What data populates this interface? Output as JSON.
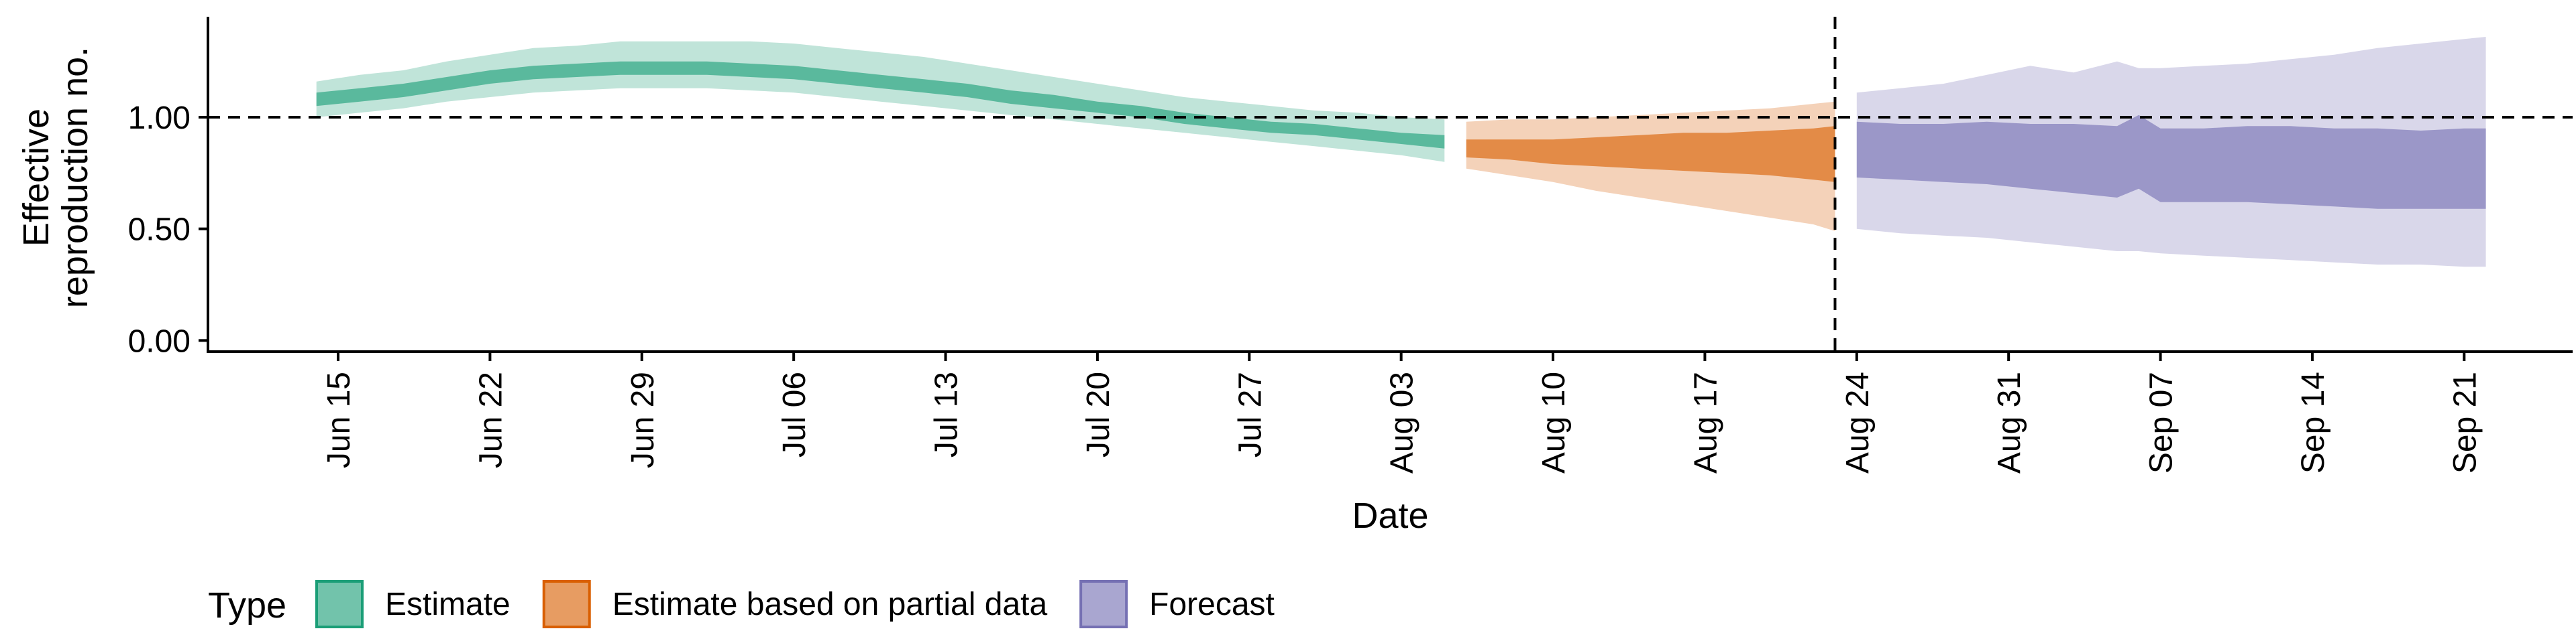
{
  "chart_data": {
    "type": "area",
    "title": "",
    "xlabel": "Date",
    "ylabel_lines": [
      "Effective",
      "reproduction no."
    ],
    "y_ticks": [
      {
        "value": 0.0,
        "label": "0.00"
      },
      {
        "value": 0.5,
        "label": "0.50"
      },
      {
        "value": 1.0,
        "label": "1.00"
      }
    ],
    "x_ticks": [
      {
        "date": "2020-06-15",
        "label": "Jun 15"
      },
      {
        "date": "2020-06-22",
        "label": "Jun 22"
      },
      {
        "date": "2020-06-29",
        "label": "Jun 29"
      },
      {
        "date": "2020-07-06",
        "label": "Jul 06"
      },
      {
        "date": "2020-07-13",
        "label": "Jul 13"
      },
      {
        "date": "2020-07-20",
        "label": "Jul 20"
      },
      {
        "date": "2020-07-27",
        "label": "Jul 27"
      },
      {
        "date": "2020-08-03",
        "label": "Aug 03"
      },
      {
        "date": "2020-08-10",
        "label": "Aug 10"
      },
      {
        "date": "2020-08-17",
        "label": "Aug 17"
      },
      {
        "date": "2020-08-24",
        "label": "Aug 24"
      },
      {
        "date": "2020-08-31",
        "label": "Aug 31"
      },
      {
        "date": "2020-09-07",
        "label": "Sep 07"
      },
      {
        "date": "2020-09-14",
        "label": "Sep 14"
      },
      {
        "date": "2020-09-21",
        "label": "Sep 21"
      }
    ],
    "x_range": [
      "2020-06-09",
      "2020-09-26"
    ],
    "y_range": [
      -0.05,
      1.45
    ],
    "reference_hline": 1.0,
    "reference_vline": "2020-08-23",
    "grid": false,
    "legend": {
      "position": "bottom-left",
      "title": "Type"
    },
    "series": [
      {
        "name": "Estimate",
        "color": "#1b9e77",
        "x": [
          "2020-06-14",
          "2020-06-16",
          "2020-06-18",
          "2020-06-20",
          "2020-06-22",
          "2020-06-24",
          "2020-06-26",
          "2020-06-28",
          "2020-06-30",
          "2020-07-02",
          "2020-07-04",
          "2020-07-06",
          "2020-07-08",
          "2020-07-10",
          "2020-07-12",
          "2020-07-14",
          "2020-07-16",
          "2020-07-18",
          "2020-07-20",
          "2020-07-22",
          "2020-07-24",
          "2020-07-26",
          "2020-07-28",
          "2020-07-30",
          "2020-08-01",
          "2020-08-03",
          "2020-08-05"
        ],
        "upper90": [
          1.16,
          1.19,
          1.21,
          1.25,
          1.28,
          1.31,
          1.32,
          1.34,
          1.34,
          1.34,
          1.34,
          1.33,
          1.31,
          1.29,
          1.27,
          1.24,
          1.21,
          1.18,
          1.15,
          1.12,
          1.09,
          1.07,
          1.05,
          1.03,
          1.02,
          1.0,
          0.99
        ],
        "upper50": [
          1.11,
          1.13,
          1.15,
          1.18,
          1.21,
          1.23,
          1.24,
          1.25,
          1.25,
          1.25,
          1.24,
          1.23,
          1.21,
          1.19,
          1.17,
          1.15,
          1.12,
          1.1,
          1.07,
          1.05,
          1.02,
          1.0,
          0.98,
          0.97,
          0.95,
          0.93,
          0.92
        ],
        "lower50": [
          1.05,
          1.07,
          1.09,
          1.12,
          1.15,
          1.17,
          1.18,
          1.19,
          1.19,
          1.19,
          1.18,
          1.17,
          1.15,
          1.13,
          1.11,
          1.09,
          1.06,
          1.04,
          1.02,
          1.0,
          0.97,
          0.95,
          0.93,
          0.92,
          0.9,
          0.88,
          0.86
        ],
        "lower90": [
          1.0,
          1.02,
          1.04,
          1.07,
          1.09,
          1.11,
          1.12,
          1.13,
          1.13,
          1.13,
          1.12,
          1.11,
          1.09,
          1.07,
          1.05,
          1.03,
          1.01,
          0.99,
          0.97,
          0.95,
          0.93,
          0.91,
          0.89,
          0.87,
          0.85,
          0.83,
          0.8
        ]
      },
      {
        "name": "Estimate based on partial data",
        "color": "#d95f02",
        "x": [
          "2020-08-06",
          "2020-08-08",
          "2020-08-10",
          "2020-08-12",
          "2020-08-14",
          "2020-08-16",
          "2020-08-18",
          "2020-08-20",
          "2020-08-22",
          "2020-08-23"
        ],
        "upper90": [
          0.98,
          0.99,
          0.99,
          1.0,
          1.01,
          1.02,
          1.03,
          1.04,
          1.06,
          1.07
        ],
        "upper50": [
          0.9,
          0.9,
          0.9,
          0.91,
          0.92,
          0.93,
          0.93,
          0.94,
          0.95,
          0.96
        ],
        "lower50": [
          0.82,
          0.81,
          0.79,
          0.78,
          0.77,
          0.76,
          0.75,
          0.74,
          0.72,
          0.71
        ],
        "lower90": [
          0.77,
          0.74,
          0.71,
          0.67,
          0.64,
          0.61,
          0.58,
          0.55,
          0.52,
          0.49
        ]
      },
      {
        "name": "Forecast",
        "color": "#7570b3",
        "x": [
          "2020-08-24",
          "2020-08-26",
          "2020-08-28",
          "2020-08-30",
          "2020-09-01",
          "2020-09-03",
          "2020-09-05",
          "2020-09-06",
          "2020-09-07",
          "2020-09-09",
          "2020-09-11",
          "2020-09-13",
          "2020-09-15",
          "2020-09-17",
          "2020-09-19",
          "2020-09-21",
          "2020-09-22"
        ],
        "upper90": [
          1.11,
          1.13,
          1.15,
          1.19,
          1.23,
          1.2,
          1.25,
          1.22,
          1.22,
          1.23,
          1.24,
          1.26,
          1.28,
          1.31,
          1.33,
          1.35,
          1.36
        ],
        "upper50": [
          0.98,
          0.97,
          0.97,
          0.98,
          0.97,
          0.97,
          0.96,
          1.01,
          0.95,
          0.95,
          0.96,
          0.96,
          0.95,
          0.95,
          0.94,
          0.95,
          0.95
        ],
        "lower50": [
          0.73,
          0.72,
          0.71,
          0.7,
          0.68,
          0.66,
          0.64,
          0.68,
          0.62,
          0.62,
          0.62,
          0.61,
          0.6,
          0.59,
          0.59,
          0.59,
          0.59
        ],
        "lower90": [
          0.5,
          0.48,
          0.47,
          0.46,
          0.44,
          0.42,
          0.4,
          0.4,
          0.39,
          0.38,
          0.37,
          0.36,
          0.35,
          0.34,
          0.34,
          0.33,
          0.33
        ]
      }
    ]
  }
}
